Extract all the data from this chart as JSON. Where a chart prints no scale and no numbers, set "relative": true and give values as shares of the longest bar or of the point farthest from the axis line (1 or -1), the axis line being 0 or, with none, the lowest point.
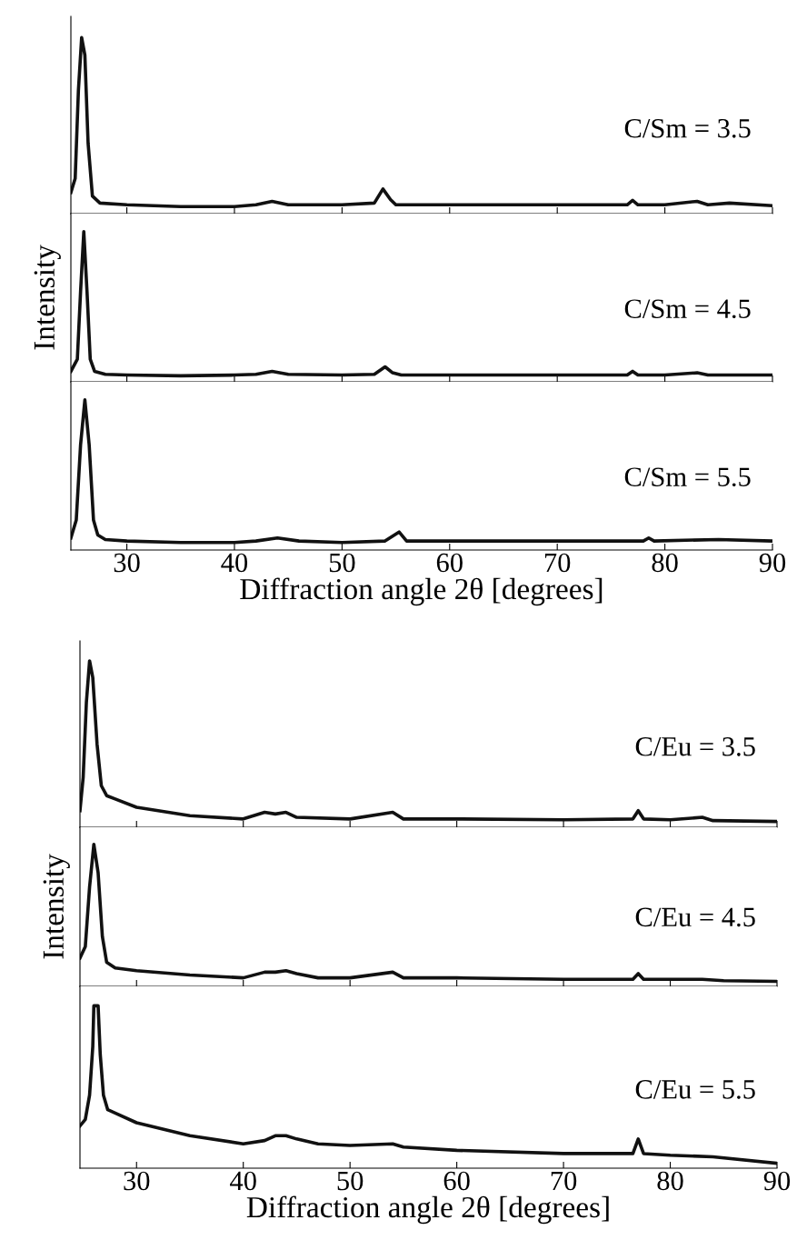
{
  "chart_data": [
    {
      "type": "line",
      "relative": true,
      "tick_labels": false,
      "xlim": [
        24.8,
        90
      ],
      "xticks": [
        30,
        40,
        50,
        60,
        70,
        80,
        90
      ],
      "annotations": [
        "C/Sm = 3.5"
      ],
      "x": [
        24.8,
        25.2,
        25.5,
        25.8,
        26.1,
        26.4,
        26.8,
        27.5,
        30,
        35,
        40,
        42,
        43.5,
        45,
        50,
        53,
        53.8,
        54.5,
        55,
        60,
        70,
        76.5,
        77,
        77.5,
        80,
        83,
        84,
        86,
        90
      ],
      "series": [
        {
          "color": "#111111",
          "values": [
            0.12,
            0.2,
            0.7,
            1.0,
            0.9,
            0.4,
            0.1,
            0.06,
            0.05,
            0.04,
            0.04,
            0.05,
            0.07,
            0.05,
            0.05,
            0.06,
            0.14,
            0.08,
            0.05,
            0.05,
            0.05,
            0.05,
            0.075,
            0.05,
            0.05,
            0.07,
            0.05,
            0.06,
            0.045
          ]
        }
      ]
    },
    {
      "type": "line",
      "relative": true,
      "tick_labels": false,
      "xlim": [
        24.8,
        90
      ],
      "xticks": [
        30,
        40,
        50,
        60,
        70,
        80,
        90
      ],
      "ylabel": "Intensity",
      "annotations": [
        "C/Sm = 4.5"
      ],
      "x": [
        24.8,
        25.4,
        25.7,
        26.0,
        26.3,
        26.6,
        27.0,
        28,
        30,
        35,
        40,
        42,
        43.5,
        45,
        50,
        53,
        54,
        54.7,
        55.5,
        60,
        70,
        76.5,
        77,
        77.5,
        80,
        83,
        84,
        90
      ],
      "series": [
        {
          "color": "#111111",
          "values": [
            0.07,
            0.15,
            0.6,
            1.0,
            0.6,
            0.15,
            0.07,
            0.05,
            0.045,
            0.04,
            0.045,
            0.05,
            0.07,
            0.05,
            0.045,
            0.05,
            0.1,
            0.06,
            0.045,
            0.045,
            0.045,
            0.045,
            0.07,
            0.045,
            0.045,
            0.06,
            0.045,
            0.045
          ]
        }
      ]
    },
    {
      "type": "line",
      "relative": true,
      "tick_labels": "x",
      "xlim": [
        24.8,
        90
      ],
      "xticks": [
        30,
        40,
        50,
        60,
        70,
        80,
        90
      ],
      "xlabel": "Diffraction angle 2θ [degrees]",
      "annotations": [
        "C/Sm = 5.5"
      ],
      "x": [
        24.8,
        25.3,
        25.7,
        26.1,
        26.5,
        26.9,
        27.3,
        28,
        30,
        35,
        40,
        42,
        44,
        46,
        50,
        54,
        55.3,
        56,
        60,
        70,
        78,
        78.5,
        79,
        85,
        90
      ],
      "series": [
        {
          "color": "#111111",
          "values": [
            0.08,
            0.2,
            0.7,
            1.0,
            0.7,
            0.2,
            0.1,
            0.07,
            0.06,
            0.05,
            0.05,
            0.06,
            0.08,
            0.06,
            0.05,
            0.06,
            0.12,
            0.06,
            0.06,
            0.06,
            0.06,
            0.08,
            0.06,
            0.07,
            0.06
          ]
        }
      ]
    },
    {
      "type": "line",
      "relative": true,
      "tick_labels": false,
      "xlim": [
        24.7,
        90
      ],
      "xticks": [
        30,
        40,
        50,
        60,
        70,
        80,
        90
      ],
      "annotations": [
        "C/Eu = 3.5"
      ],
      "x": [
        24.7,
        25.0,
        25.3,
        25.6,
        25.9,
        26.3,
        26.7,
        27.2,
        28,
        30,
        35,
        40,
        42,
        43,
        44,
        45,
        50,
        54,
        55,
        60,
        70,
        76.5,
        77,
        77.5,
        80,
        83,
        84,
        90
      ],
      "series": [
        {
          "color": "#111111",
          "values": [
            0.1,
            0.3,
            0.75,
            1.0,
            0.9,
            0.5,
            0.25,
            0.19,
            0.17,
            0.12,
            0.07,
            0.05,
            0.09,
            0.08,
            0.09,
            0.06,
            0.05,
            0.09,
            0.05,
            0.05,
            0.045,
            0.05,
            0.1,
            0.05,
            0.045,
            0.06,
            0.04,
            0.035
          ]
        }
      ]
    },
    {
      "type": "line",
      "relative": true,
      "tick_labels": false,
      "xlim": [
        24.7,
        90
      ],
      "xticks": [
        30,
        40,
        50,
        60,
        70,
        80,
        90
      ],
      "ylabel": "Intensity",
      "annotations": [
        "C/Eu = 4.5"
      ],
      "x": [
        24.7,
        25.2,
        25.6,
        26.0,
        26.4,
        26.8,
        27.2,
        28,
        30,
        35,
        40,
        42,
        43,
        44,
        45,
        47,
        50,
        54,
        55,
        60,
        70,
        76.5,
        77,
        77.5,
        80,
        83,
        85,
        90
      ],
      "series": [
        {
          "color": "#111111",
          "values": [
            0.2,
            0.28,
            0.7,
            1.0,
            0.8,
            0.35,
            0.17,
            0.13,
            0.11,
            0.08,
            0.06,
            0.1,
            0.1,
            0.11,
            0.09,
            0.06,
            0.06,
            0.1,
            0.06,
            0.06,
            0.05,
            0.05,
            0.09,
            0.05,
            0.05,
            0.05,
            0.04,
            0.035
          ]
        }
      ]
    },
    {
      "type": "line",
      "relative": true,
      "tick_labels": "x",
      "xlim": [
        24.7,
        90
      ],
      "xticks": [
        30,
        40,
        50,
        60,
        70,
        80,
        90
      ],
      "xlabel": "Diffraction angle 2θ [degrees]",
      "annotations": [
        "C/Eu = 5.5"
      ],
      "x": [
        24.7,
        25.2,
        25.6,
        25.9,
        26.0,
        26.4,
        26.6,
        26.9,
        27.3,
        28,
        30,
        35,
        40,
        42,
        43,
        44,
        45,
        47,
        50,
        54,
        55,
        60,
        70,
        76.5,
        77,
        77.5,
        80,
        84,
        90
      ],
      "series": [
        {
          "color": "#111111",
          "values": [
            0.26,
            0.3,
            0.45,
            0.75,
            1.0,
            1.0,
            0.7,
            0.45,
            0.36,
            0.34,
            0.28,
            0.2,
            0.15,
            0.17,
            0.2,
            0.2,
            0.18,
            0.15,
            0.14,
            0.15,
            0.13,
            0.11,
            0.09,
            0.09,
            0.18,
            0.09,
            0.08,
            0.07,
            0.03
          ]
        }
      ]
    }
  ]
}
